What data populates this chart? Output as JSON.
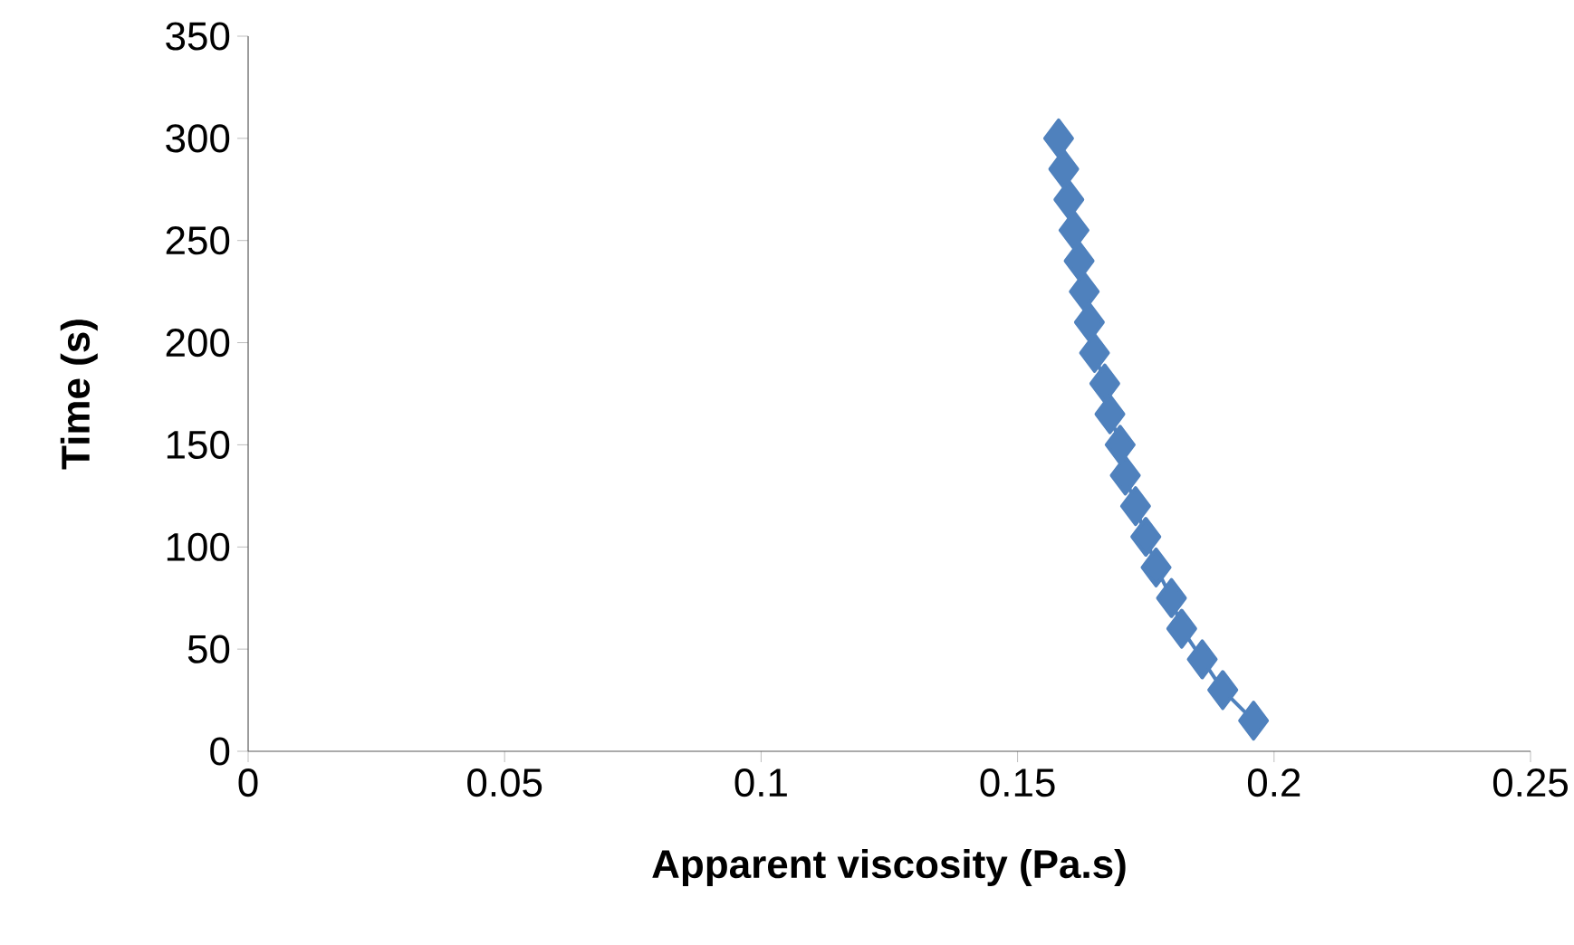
{
  "chart_data": {
    "type": "line",
    "xlabel": "Apparent viscosity (Pa.s)",
    "ylabel": "Time (s)",
    "series": [
      {
        "color": "#4f81bd",
        "x": [
          0.196,
          0.19,
          0.186,
          0.182,
          0.18,
          0.177,
          0.175,
          0.173,
          0.171,
          0.17,
          0.168,
          0.167,
          0.165,
          0.164,
          0.163,
          0.162,
          0.161,
          0.16,
          0.159,
          0.158
        ],
        "values": [
          15,
          30,
          45,
          60,
          75,
          90,
          105,
          120,
          135,
          150,
          165,
          180,
          195,
          210,
          225,
          240,
          255,
          270,
          285,
          300
        ]
      }
    ],
    "xlim": [
      0,
      0.25
    ],
    "xticks": [
      0,
      0.05,
      0.1,
      0.15,
      0.2,
      0.25
    ],
    "ylim": [
      0,
      350
    ],
    "yticks": [
      0,
      50,
      100,
      150,
      200,
      250,
      300,
      350
    ],
    "marker": "diamond",
    "line_style": "solid"
  }
}
